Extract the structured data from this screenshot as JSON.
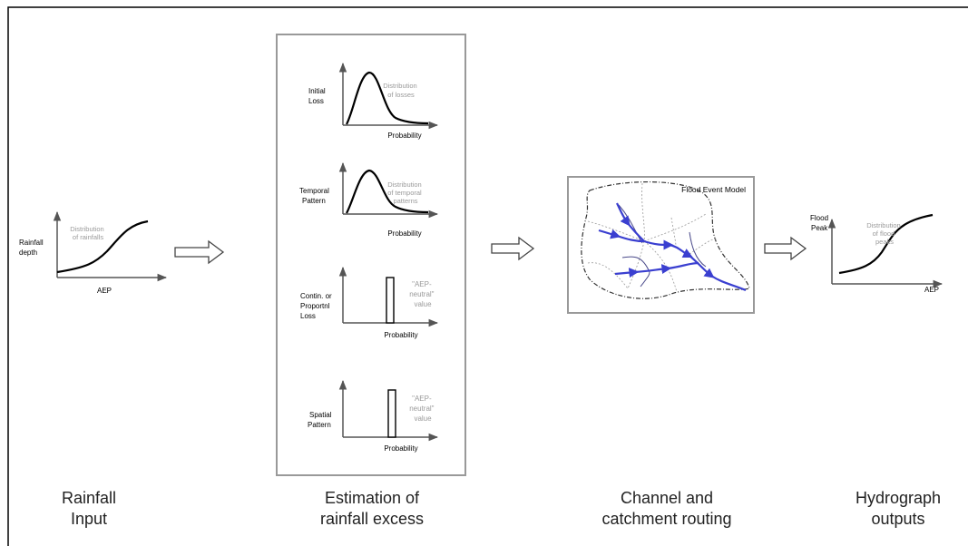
{
  "rainfall_input": {
    "ylabel": [
      "Rainfall",
      "depth"
    ],
    "xlabel": "AEP",
    "annotation": [
      "Distribution",
      "of rainfalls"
    ]
  },
  "initial_loss": {
    "ylabel": [
      "Initial",
      "Loss"
    ],
    "xlabel": "Probability",
    "annotation": [
      "Distribution",
      "of losses"
    ]
  },
  "temporal_pattern": {
    "ylabel": [
      "Temporal",
      "Pattern"
    ],
    "xlabel": "Probability",
    "annotation": [
      "Distribution",
      "of temporal",
      "patterns"
    ]
  },
  "contin_loss": {
    "ylabel": [
      "Contin. or",
      "Proportnl",
      "Loss"
    ],
    "xlabel": "Probability",
    "annotation": [
      "\"AEP-",
      "neutral\"",
      "value"
    ]
  },
  "spatial_pattern": {
    "ylabel": [
      "Spatial",
      "Pattern"
    ],
    "xlabel": "Probability",
    "annotation": [
      "\"AEP-",
      "neutral\"",
      "value"
    ]
  },
  "flood_model": {
    "title": "Flood Event Model"
  },
  "hydrograph_outputs": {
    "ylabel": [
      "Flood",
      "Peak"
    ],
    "xlabel": "AEP",
    "annotation": [
      "Distribution",
      "of flood",
      "peaks"
    ]
  },
  "captions": {
    "rainfall": [
      "Rainfall",
      "Input"
    ],
    "excess": [
      "Estimation of",
      "rainfall excess"
    ],
    "routing": [
      "Channel and",
      "catchment routing"
    ],
    "hydrograph": [
      "Hydrograph",
      "outputs"
    ]
  },
  "colors": {
    "river": "#3a3fd0",
    "annotation": "#9a9a9a",
    "frame": "#000000"
  }
}
